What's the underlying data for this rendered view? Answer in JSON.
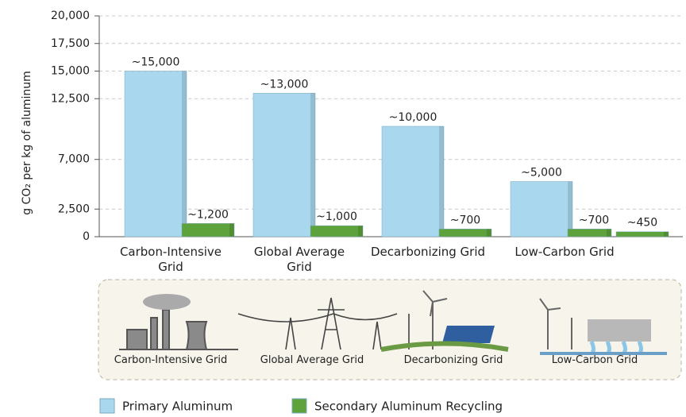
{
  "chart_data": {
    "type": "bar",
    "y_label": "g CO₂ per kg of aluminum",
    "categories": [
      "Carbon-Intensive Grid",
      "Global Average Grid",
      "Decarbonizing Grid",
      "Low-Carbon Grid"
    ],
    "series": [
      {
        "name": "Primary Aluminum",
        "color": "#a9d8ee",
        "values": [
          15000,
          13000,
          10000,
          5000
        ],
        "value_labels": [
          "~15,000",
          "~13,000",
          "~10,000",
          "~5,000"
        ]
      },
      {
        "name": "Secondary Aluminum Recycling",
        "color": "#5da23a",
        "values": [
          1200,
          1000,
          700,
          700
        ],
        "value_labels": [
          "~1,200",
          "~1,000",
          "~700",
          "~700"
        ]
      },
      {
        "color": "#5da23a",
        "values": [
          null,
          null,
          null,
          450
        ],
        "value_labels": [
          null,
          null,
          null,
          "~450"
        ]
      }
    ],
    "ylim": [
      0,
      20000
    ],
    "yticks": [
      0,
      {
        "value": 2500,
        "label": "2,500"
      },
      {
        "value": 7000,
        "label": "7,000"
      },
      {
        "value": 12500,
        "label": "12,500"
      },
      {
        "value": 15000,
        "label": "15,000"
      },
      {
        "value": 17500,
        "label": "17,500"
      },
      {
        "value": 20000,
        "label": "20,000"
      }
    ],
    "grid": true
  },
  "panel": {
    "labels": [
      "Carbon-Intensive Grid",
      "Global Average Grid",
      "Decarbonizing Grid",
      "Low-Carbon Grid"
    ]
  }
}
